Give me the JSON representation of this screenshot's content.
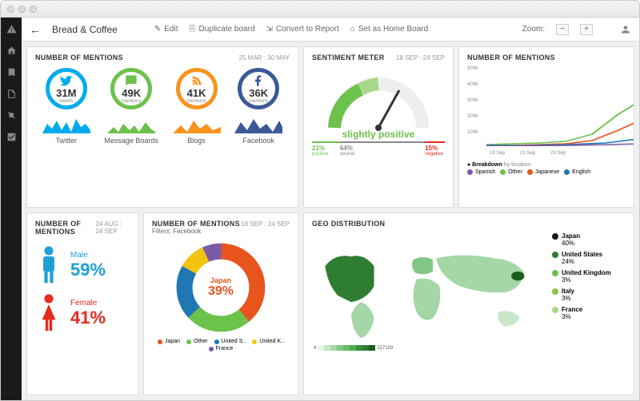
{
  "chrome": {},
  "topbar": {
    "title": "Bread & Coffee",
    "actions": {
      "edit": "Edit",
      "dup": "Duplicate board",
      "conv": "Convert to Report",
      "home": "Set as Home Board"
    },
    "zoom_label": "Zoom:"
  },
  "mentions": {
    "title": "NUMBER OF MENTIONS",
    "date": "25 MAR : 30 MAY",
    "items": [
      {
        "label": "Twitter",
        "value": "31M",
        "sub": "tweets",
        "color": "#00aced",
        "icon": "twitter"
      },
      {
        "label": "Message Boards",
        "value": "49K",
        "sub": "mentions",
        "color": "#6cc24a",
        "icon": "chat"
      },
      {
        "label": "Blogs",
        "value": "41K",
        "sub": "mentions",
        "color": "#f7941e",
        "icon": "rss"
      },
      {
        "label": "Facebook",
        "value": "36K",
        "sub": "mentions",
        "color": "#3b5998",
        "icon": "fb"
      }
    ]
  },
  "sentiment": {
    "title": "SENTIMENT METER",
    "date": "18 SEP : 24 SEP",
    "label": "slightly positive",
    "label_color": "#6cc24a",
    "segs": [
      {
        "v": "21%",
        "l": "positive",
        "c": "#6cc24a",
        "w": 21
      },
      {
        "v": "64%",
        "l": "neutral",
        "c": "#888",
        "w": 64
      },
      {
        "v": "15%",
        "l": "negative",
        "c": "#e8291e",
        "w": 15
      }
    ],
    "needle_angle": -25
  },
  "trend": {
    "title": "NUMBER OF MENTIONS",
    "yticks": [
      "500K",
      "400K",
      "300K",
      "200K",
      "100K"
    ],
    "xticks": [
      "19 Sep",
      "21 Sep",
      "23 Sep"
    ],
    "legend_title": "Breakdown by location",
    "legend": [
      {
        "l": "Spanish",
        "c": "#7b5aa6"
      },
      {
        "l": "Other",
        "c": "#6cc24a"
      },
      {
        "l": "Japanese",
        "c": "#e8541e"
      },
      {
        "l": "English",
        "c": "#1f77b4"
      }
    ]
  },
  "gender": {
    "title": "NUMBER OF MENTIONS",
    "date": "24 AUG : 24 SEP",
    "male": {
      "l": "Male",
      "v": "59%",
      "c": "#1f9fd6"
    },
    "female": {
      "l": "Female",
      "v": "41%",
      "c": "#e8291e"
    }
  },
  "donut": {
    "title": "NUMBER OF MENTIONS",
    "date": "18 SEP : 24 SEP",
    "filter": "Filters: Facebook",
    "center_l": "Japan",
    "center_v": "39%",
    "slices": [
      {
        "l": "Japan",
        "c": "#e8541e",
        "p": 39
      },
      {
        "l": "Other",
        "c": "#6cc24a",
        "p": 24
      },
      {
        "l": "United S..",
        "c": "#1f77b4",
        "p": 20
      },
      {
        "l": "United K..",
        "c": "#f2c40f",
        "p": 10
      },
      {
        "l": "France",
        "c": "#7b5aa6",
        "p": 7
      }
    ]
  },
  "geo": {
    "title": "GEO DISTRIBUTION",
    "items": [
      {
        "l": "Japan",
        "v": "40%",
        "c": "#1a1a1a"
      },
      {
        "l": "United States",
        "v": "24%",
        "c": "#2e7d32"
      },
      {
        "l": "United Kingdom",
        "v": "3%",
        "c": "#6cc24a"
      },
      {
        "l": "Italy",
        "v": "3%",
        "c": "#8bc34a"
      },
      {
        "l": "France",
        "v": "3%",
        "c": "#aed581"
      }
    ],
    "scale": {
      "min": "4",
      "max": "227103",
      "colors": [
        "#e8f5e9",
        "#c8e6c9",
        "#a5d6a7",
        "#81c784",
        "#66bb6a",
        "#4caf50",
        "#388e3c",
        "#2e7d32",
        "#1b5e20"
      ]
    }
  }
}
